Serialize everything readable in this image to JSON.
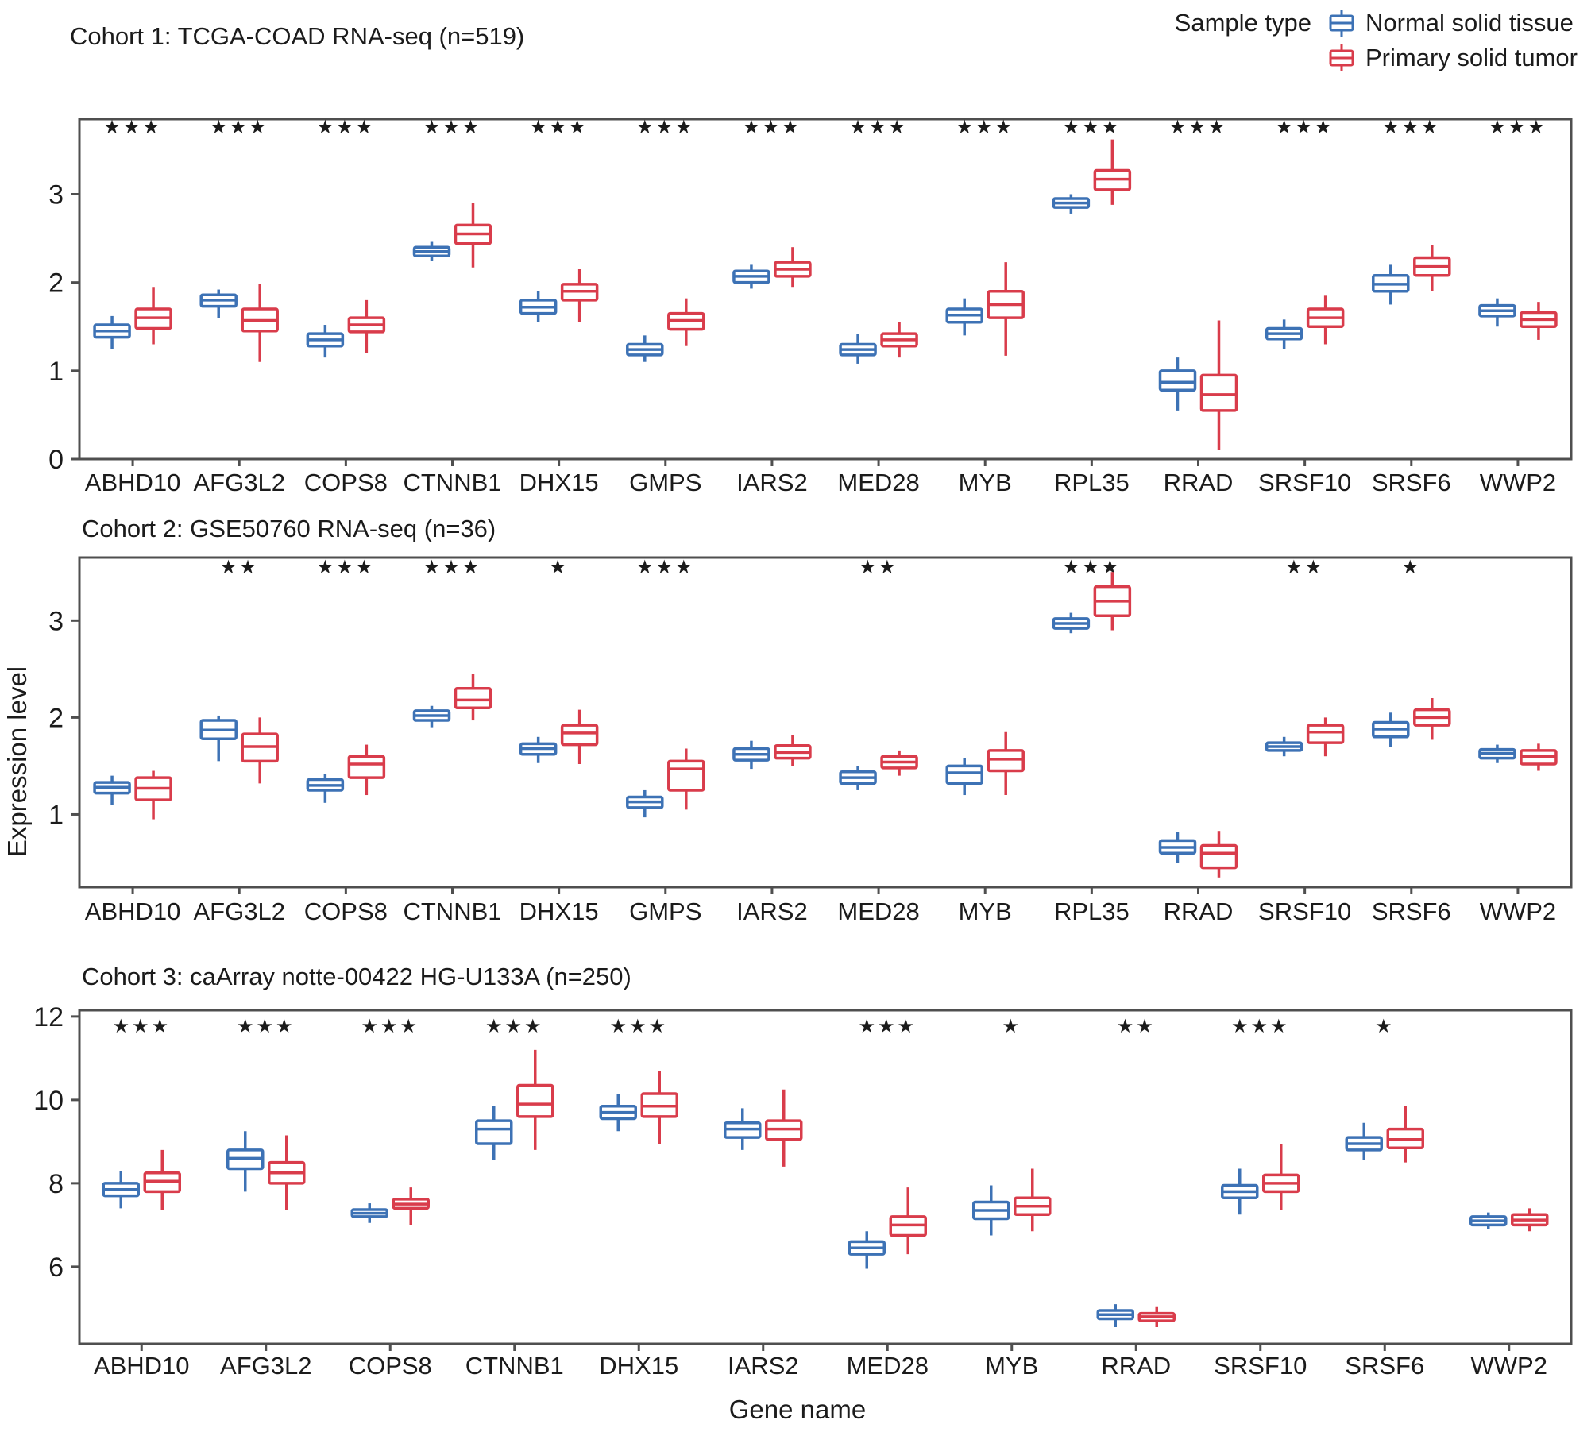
{
  "legend": {
    "title": "Sample type",
    "items": [
      {
        "label": "Normal solid tissue",
        "color": "#3d72b5"
      },
      {
        "label": "Primary solid tumor",
        "color": "#d93c4b"
      }
    ]
  },
  "axes": {
    "y_label": "Expression level",
    "x_label": "Gene name"
  },
  "colors": {
    "normal": "#3d72b5",
    "tumor": "#d93c4b",
    "box_fill": "#ffffff",
    "frame": "#4f4f4f",
    "star": "#1a1a1a"
  },
  "chart_data": [
    {
      "type": "boxplot",
      "title": "Cohort 1: TCGA-COAD RNA-seq (n=519)",
      "ylabel": "Expression level",
      "ylim": [
        0,
        3.85
      ],
      "yticks": [
        0,
        1,
        2,
        3
      ],
      "legend_position": "top-right",
      "grid": false,
      "box_stats_order": [
        "whisker_low",
        "q1",
        "median",
        "q3",
        "whisker_high"
      ],
      "genes": [
        {
          "name": "ABHD10",
          "significance": "***",
          "normal": [
            1.25,
            1.38,
            1.45,
            1.52,
            1.62
          ],
          "tumor": [
            1.3,
            1.48,
            1.6,
            1.7,
            1.95
          ]
        },
        {
          "name": "AFG3L2",
          "significance": "***",
          "normal": [
            1.6,
            1.73,
            1.8,
            1.86,
            1.92
          ],
          "tumor": [
            1.1,
            1.45,
            1.57,
            1.7,
            1.98
          ]
        },
        {
          "name": "COPS8",
          "significance": "***",
          "normal": [
            1.15,
            1.28,
            1.35,
            1.42,
            1.52
          ],
          "tumor": [
            1.2,
            1.44,
            1.52,
            1.6,
            1.8
          ]
        },
        {
          "name": "CTNNB1",
          "significance": "***",
          "normal": [
            2.24,
            2.3,
            2.35,
            2.4,
            2.46
          ],
          "tumor": [
            2.17,
            2.44,
            2.55,
            2.65,
            2.9
          ]
        },
        {
          "name": "DHX15",
          "significance": "***",
          "normal": [
            1.55,
            1.65,
            1.72,
            1.8,
            1.9
          ],
          "tumor": [
            1.55,
            1.8,
            1.9,
            1.98,
            2.15
          ]
        },
        {
          "name": "GMPS",
          "significance": "***",
          "normal": [
            1.1,
            1.18,
            1.24,
            1.3,
            1.4
          ],
          "tumor": [
            1.28,
            1.47,
            1.57,
            1.65,
            1.82
          ]
        },
        {
          "name": "IARS2",
          "significance": "***",
          "normal": [
            1.93,
            2.0,
            2.07,
            2.13,
            2.2
          ],
          "tumor": [
            1.95,
            2.07,
            2.15,
            2.23,
            2.4
          ]
        },
        {
          "name": "MED28",
          "significance": "***",
          "normal": [
            1.08,
            1.18,
            1.24,
            1.3,
            1.42
          ],
          "tumor": [
            1.15,
            1.28,
            1.35,
            1.42,
            1.55
          ]
        },
        {
          "name": "MYB",
          "significance": "***",
          "normal": [
            1.4,
            1.55,
            1.63,
            1.7,
            1.82
          ],
          "tumor": [
            1.17,
            1.6,
            1.75,
            1.9,
            2.23
          ]
        },
        {
          "name": "RPL35",
          "significance": "***",
          "normal": [
            2.78,
            2.85,
            2.9,
            2.95,
            3.0
          ],
          "tumor": [
            2.88,
            3.05,
            3.17,
            3.27,
            3.62
          ]
        },
        {
          "name": "RRAD",
          "significance": "***",
          "normal": [
            0.55,
            0.78,
            0.87,
            1.0,
            1.15
          ],
          "tumor": [
            0.1,
            0.55,
            0.73,
            0.95,
            1.57
          ]
        },
        {
          "name": "SRSF10",
          "significance": "***",
          "normal": [
            1.25,
            1.36,
            1.42,
            1.48,
            1.58
          ],
          "tumor": [
            1.3,
            1.5,
            1.6,
            1.7,
            1.85
          ]
        },
        {
          "name": "SRSF6",
          "significance": "***",
          "normal": [
            1.75,
            1.9,
            1.98,
            2.08,
            2.2
          ],
          "tumor": [
            1.9,
            2.08,
            2.18,
            2.28,
            2.42
          ]
        },
        {
          "name": "WWP2",
          "significance": "***",
          "normal": [
            1.5,
            1.62,
            1.68,
            1.74,
            1.82
          ],
          "tumor": [
            1.35,
            1.5,
            1.58,
            1.66,
            1.78
          ]
        }
      ]
    },
    {
      "type": "boxplot",
      "title": "Cohort 2: GSE50760 RNA-seq (n=36)",
      "ylabel": "Expression level",
      "ylim": [
        0.25,
        3.65
      ],
      "yticks": [
        1,
        2,
        3
      ],
      "grid": false,
      "box_stats_order": [
        "whisker_low",
        "q1",
        "median",
        "q3",
        "whisker_high"
      ],
      "genes": [
        {
          "name": "ABHD10",
          "significance": "",
          "normal": [
            1.1,
            1.22,
            1.28,
            1.33,
            1.4
          ],
          "tumor": [
            0.95,
            1.15,
            1.27,
            1.38,
            1.45
          ]
        },
        {
          "name": "AFG3L2",
          "significance": "**",
          "normal": [
            1.55,
            1.78,
            1.87,
            1.97,
            2.02
          ],
          "tumor": [
            1.32,
            1.55,
            1.7,
            1.83,
            2.0
          ]
        },
        {
          "name": "COPS8",
          "significance": "***",
          "normal": [
            1.12,
            1.25,
            1.3,
            1.36,
            1.42
          ],
          "tumor": [
            1.2,
            1.38,
            1.52,
            1.6,
            1.72
          ]
        },
        {
          "name": "CTNNB1",
          "significance": "***",
          "normal": [
            1.9,
            1.97,
            2.02,
            2.07,
            2.12
          ],
          "tumor": [
            1.97,
            2.1,
            2.18,
            2.3,
            2.45
          ]
        },
        {
          "name": "DHX15",
          "significance": "*",
          "normal": [
            1.53,
            1.62,
            1.68,
            1.73,
            1.8
          ],
          "tumor": [
            1.52,
            1.72,
            1.84,
            1.92,
            2.08
          ]
        },
        {
          "name": "GMPS",
          "significance": "***",
          "normal": [
            0.97,
            1.07,
            1.13,
            1.18,
            1.25
          ],
          "tumor": [
            1.05,
            1.25,
            1.47,
            1.55,
            1.68
          ]
        },
        {
          "name": "IARS2",
          "significance": "",
          "normal": [
            1.47,
            1.56,
            1.62,
            1.68,
            1.76
          ],
          "tumor": [
            1.5,
            1.58,
            1.64,
            1.71,
            1.82
          ]
        },
        {
          "name": "MED28",
          "significance": "**",
          "normal": [
            1.25,
            1.32,
            1.38,
            1.44,
            1.5
          ],
          "tumor": [
            1.4,
            1.48,
            1.54,
            1.6,
            1.66
          ]
        },
        {
          "name": "MYB",
          "significance": "",
          "normal": [
            1.2,
            1.32,
            1.43,
            1.5,
            1.58
          ],
          "tumor": [
            1.2,
            1.45,
            1.57,
            1.66,
            1.85
          ]
        },
        {
          "name": "RPL35",
          "significance": "***",
          "normal": [
            2.87,
            2.92,
            2.97,
            3.02,
            3.08
          ],
          "tumor": [
            2.9,
            3.05,
            3.2,
            3.35,
            3.5
          ]
        },
        {
          "name": "RRAD",
          "significance": "",
          "normal": [
            0.5,
            0.6,
            0.66,
            0.73,
            0.82
          ],
          "tumor": [
            0.35,
            0.45,
            0.6,
            0.68,
            0.83
          ]
        },
        {
          "name": "SRSF10",
          "significance": "**",
          "normal": [
            1.6,
            1.66,
            1.7,
            1.74,
            1.8
          ],
          "tumor": [
            1.6,
            1.74,
            1.85,
            1.92,
            2.0
          ]
        },
        {
          "name": "SRSF6",
          "significance": "*",
          "normal": [
            1.7,
            1.8,
            1.88,
            1.95,
            2.05
          ],
          "tumor": [
            1.77,
            1.92,
            2.0,
            2.08,
            2.2
          ]
        },
        {
          "name": "WWP2",
          "significance": "",
          "normal": [
            1.53,
            1.58,
            1.63,
            1.67,
            1.72
          ],
          "tumor": [
            1.45,
            1.52,
            1.6,
            1.66,
            1.73
          ]
        }
      ]
    },
    {
      "type": "boxplot",
      "title": "Cohort 3: caArray notte-00422 HG-U133A (n=250)",
      "ylabel": "Expression level",
      "xlabel": "Gene name",
      "ylim": [
        4.15,
        12.15
      ],
      "yticks": [
        6,
        8,
        10,
        12
      ],
      "grid": false,
      "box_stats_order": [
        "whisker_low",
        "q1",
        "median",
        "q3",
        "whisker_high"
      ],
      "genes": [
        {
          "name": "ABHD10",
          "significance": "***",
          "normal": [
            7.4,
            7.7,
            7.85,
            8.0,
            8.3
          ],
          "tumor": [
            7.35,
            7.8,
            8.05,
            8.25,
            8.8
          ]
        },
        {
          "name": "AFG3L2",
          "significance": "***",
          "normal": [
            7.8,
            8.35,
            8.6,
            8.8,
            9.25
          ],
          "tumor": [
            7.35,
            8.0,
            8.25,
            8.5,
            9.15
          ]
        },
        {
          "name": "COPS8",
          "significance": "***",
          "normal": [
            7.05,
            7.2,
            7.28,
            7.37,
            7.52
          ],
          "tumor": [
            7.0,
            7.4,
            7.5,
            7.62,
            7.9
          ]
        },
        {
          "name": "CTNNB1",
          "significance": "***",
          "normal": [
            8.55,
            8.95,
            9.3,
            9.5,
            9.85
          ],
          "tumor": [
            8.8,
            9.6,
            9.9,
            10.35,
            11.2
          ]
        },
        {
          "name": "DHX15",
          "significance": "***",
          "normal": [
            9.25,
            9.55,
            9.7,
            9.85,
            10.15
          ],
          "tumor": [
            8.95,
            9.6,
            9.85,
            10.15,
            10.7
          ]
        },
        {
          "name": "IARS2",
          "significance": "",
          "normal": [
            8.8,
            9.1,
            9.3,
            9.45,
            9.8
          ],
          "tumor": [
            8.4,
            9.05,
            9.3,
            9.5,
            10.25
          ]
        },
        {
          "name": "MED28",
          "significance": "***",
          "normal": [
            5.95,
            6.3,
            6.45,
            6.6,
            6.85
          ],
          "tumor": [
            6.3,
            6.75,
            7.0,
            7.2,
            7.9
          ]
        },
        {
          "name": "MYB",
          "significance": "*",
          "normal": [
            6.75,
            7.15,
            7.35,
            7.55,
            7.95
          ],
          "tumor": [
            6.85,
            7.25,
            7.45,
            7.65,
            8.35
          ]
        },
        {
          "name": "RRAD",
          "significance": "**",
          "normal": [
            4.55,
            4.75,
            4.85,
            4.95,
            5.1
          ],
          "tumor": [
            4.55,
            4.7,
            4.8,
            4.88,
            5.05
          ]
        },
        {
          "name": "SRSF10",
          "significance": "***",
          "normal": [
            7.25,
            7.65,
            7.8,
            7.95,
            8.35
          ],
          "tumor": [
            7.35,
            7.8,
            8.0,
            8.2,
            8.95
          ]
        },
        {
          "name": "SRSF6",
          "significance": "*",
          "normal": [
            8.55,
            8.8,
            8.95,
            9.1,
            9.45
          ],
          "tumor": [
            8.5,
            8.85,
            9.05,
            9.3,
            9.85
          ]
        },
        {
          "name": "WWP2",
          "significance": "",
          "normal": [
            6.9,
            7.0,
            7.1,
            7.2,
            7.3
          ],
          "tumor": [
            6.85,
            7.0,
            7.12,
            7.25,
            7.4
          ]
        }
      ]
    }
  ]
}
